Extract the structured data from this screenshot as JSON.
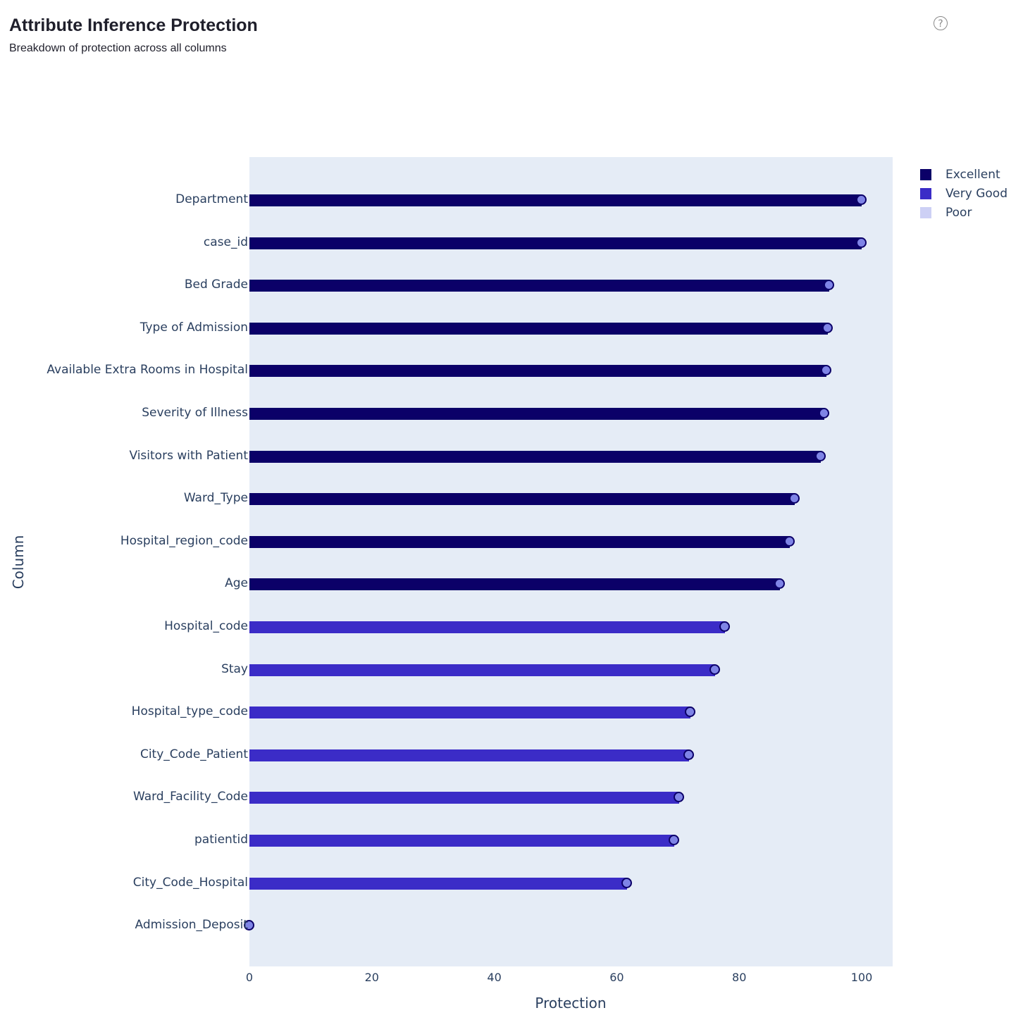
{
  "header": {
    "title": "Attribute Inference Protection",
    "subtitle": "Breakdown of protection across all columns",
    "help_icon": "question-circle-icon"
  },
  "legend": [
    {
      "label": "Excellent",
      "color": "#0b0068"
    },
    {
      "label": "Very Good",
      "color": "#3b2cc7"
    },
    {
      "label": "Poor",
      "color": "#cdd0f5"
    }
  ],
  "axes": {
    "xlabel": "Protection",
    "ylabel": "Column",
    "xticks": [
      "0",
      "20",
      "40",
      "60",
      "80",
      "100"
    ]
  },
  "chart_data": {
    "type": "bar",
    "orientation": "horizontal",
    "title": "Attribute Inference Protection",
    "subtitle": "Breakdown of protection across all columns",
    "xlabel": "Protection",
    "ylabel": "Column",
    "xlim": [
      0,
      105
    ],
    "xticks": [
      0,
      20,
      40,
      60,
      80,
      100
    ],
    "legend_position": "right",
    "categories": [
      "Department",
      "case_id",
      "Bed Grade",
      "Type of Admission",
      "Available Extra Rooms in Hospital",
      "Severity of Illness",
      "Visitors with Patient",
      "Ward_Type",
      "Hospital_region_code",
      "Age",
      "Hospital_code",
      "Stay",
      "Hospital_type_code",
      "City_Code_Patient",
      "Ward_Facility_Code",
      "patientid",
      "City_Code_Hospital",
      "Admission_Deposit"
    ],
    "values": [
      100,
      100,
      94.7,
      94.5,
      94.2,
      93.9,
      93.3,
      89.1,
      88.3,
      86.7,
      77.7,
      76.1,
      72.0,
      71.8,
      70.2,
      69.4,
      61.7,
      0
    ],
    "ratings": [
      "Excellent",
      "Excellent",
      "Excellent",
      "Excellent",
      "Excellent",
      "Excellent",
      "Excellent",
      "Excellent",
      "Excellent",
      "Excellent",
      "Very Good",
      "Very Good",
      "Very Good",
      "Very Good",
      "Very Good",
      "Very Good",
      "Very Good",
      "Poor"
    ],
    "series": [
      {
        "name": "Excellent",
        "color": "#0b0068"
      },
      {
        "name": "Very Good",
        "color": "#3b2cc7"
      },
      {
        "name": "Poor",
        "color": "#cdd0f5"
      }
    ]
  }
}
